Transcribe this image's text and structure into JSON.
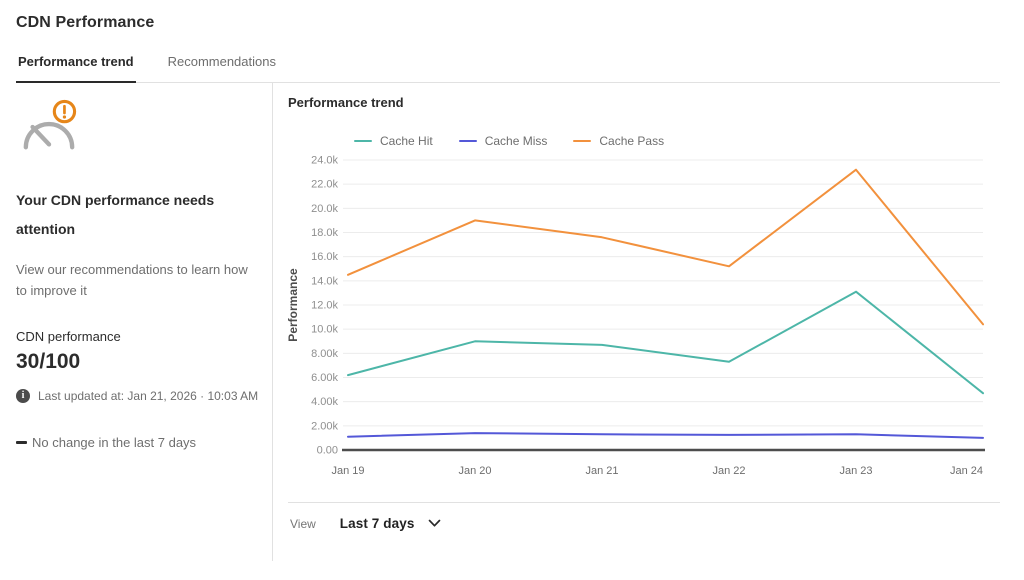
{
  "page": {
    "title": "CDN Performance"
  },
  "tabs": [
    {
      "label": "Performance trend",
      "active": true
    },
    {
      "label": "Recommendations",
      "active": false
    }
  ],
  "summary": {
    "icon": "gauge-warning-icon",
    "heading": "Your CDN performance needs attention",
    "description": "View our recommendations to learn how to improve it",
    "score_label": "CDN performance",
    "score_value": "30/100",
    "last_updated": "Last updated at: Jan 21, 2026 · 10:03 AM",
    "trend_note": "No change in the last 7 days"
  },
  "chart": {
    "title": "Performance trend",
    "view_label": "View",
    "view_value": "Last 7 days"
  },
  "chart_data": {
    "type": "line",
    "title": "Performance trend",
    "xlabel": "",
    "ylabel": "Performance",
    "x": [
      "Jan 19",
      "Jan 20",
      "Jan 21",
      "Jan 22",
      "Jan 23",
      "Jan 24"
    ],
    "series": [
      {
        "name": "Cache Hit",
        "color": "#4db6a8",
        "values": [
          6200,
          9000,
          8700,
          7300,
          13100,
          4700
        ]
      },
      {
        "name": "Cache Miss",
        "color": "#5458d8",
        "values": [
          1100,
          1400,
          1300,
          1250,
          1300,
          1000
        ]
      },
      {
        "name": "Cache Pass",
        "color": "#f2913d",
        "values": [
          14500,
          19000,
          17600,
          15200,
          23200,
          10400
        ]
      }
    ],
    "ylim": [
      0,
      24000
    ],
    "y_tick_step": 2000,
    "y_ticks": [
      "0.00",
      "2.00k",
      "4.00k",
      "6.00k",
      "8.00k",
      "10.0k",
      "12.0k",
      "14.0k",
      "16.0k",
      "18.0k",
      "20.0k",
      "22.0k",
      "24.0k"
    ],
    "grid": true,
    "legend_position": "top",
    "zero_axis_color": "#4d4d4d",
    "gridline_color": "#ececec",
    "tick_label_color": "#8f8f8f",
    "x_label_color": "#6e6e6e"
  },
  "colors": {
    "warning_orange": "#e68619",
    "icon_gray": "#acacac",
    "divider": "#e1e1e1",
    "text_dark": "#2c2c2c",
    "text_gray": "#6e6e6e"
  }
}
